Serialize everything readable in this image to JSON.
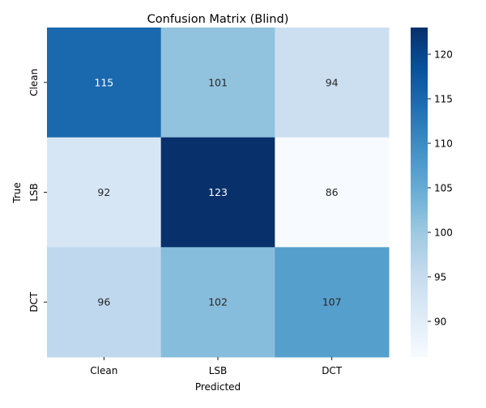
{
  "chart_data": {
    "type": "heatmap",
    "title": "Confusion Matrix (Blind)",
    "xlabel": "Predicted",
    "ylabel": "True",
    "x_categories": [
      "Clean",
      "LSB",
      "DCT"
    ],
    "y_categories": [
      "Clean",
      "LSB",
      "DCT"
    ],
    "values": [
      [
        115,
        101,
        94
      ],
      [
        92,
        123,
        86
      ],
      [
        96,
        102,
        107
      ]
    ],
    "colormap": "Blues",
    "color_range": [
      86,
      123
    ],
    "colorbar": {
      "ticks": [
        90,
        95,
        100,
        105,
        110,
        115,
        120
      ],
      "tick_labels": [
        "90",
        "95",
        "100",
        "105",
        "110",
        "115",
        "120"
      ]
    },
    "annotations": true
  }
}
